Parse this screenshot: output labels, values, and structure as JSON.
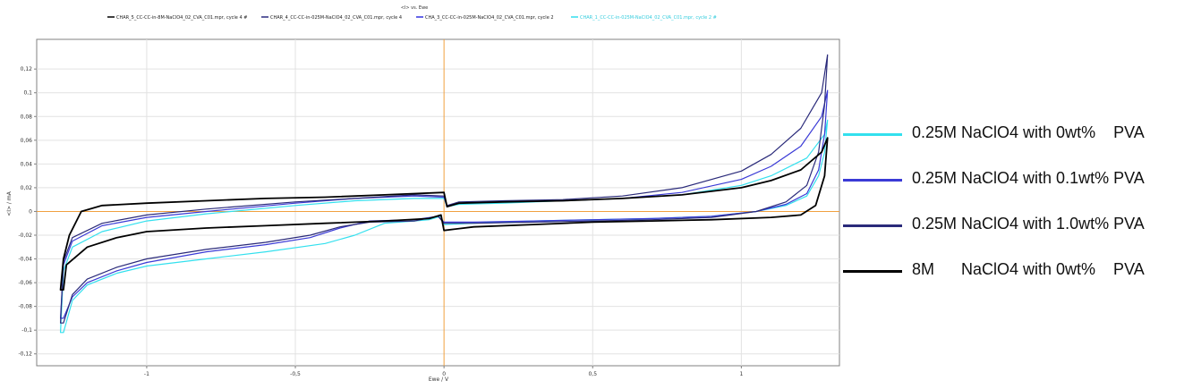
{
  "chart_data": {
    "type": "line",
    "title": "<I> vs. Ewe",
    "xlabel": "Ewe / V",
    "ylabel": "<I> / mA",
    "xlim": [
      -1.37,
      1.33
    ],
    "ylim": [
      -0.13,
      0.145
    ],
    "x_ticks": [
      "-1",
      "-0,5",
      "0",
      "0,5",
      "1"
    ],
    "x_tick_values": [
      -1,
      -0.5,
      0,
      0.5,
      1
    ],
    "y_ticks": [
      "0,12",
      "0,1",
      "0,08",
      "0,06",
      "0,04",
      "0,02",
      "0",
      "-0,02",
      "-0,04",
      "-0,06",
      "-0,08",
      "-0,1",
      "-0,12"
    ],
    "y_tick_values": [
      0.12,
      0.1,
      0.08,
      0.06,
      0.04,
      0.02,
      0,
      -0.02,
      -0.04,
      -0.06,
      -0.08,
      -0.1,
      -0.12
    ],
    "grid": true,
    "zero_lines_color": "#f0a040",
    "top_legend": [
      {
        "label": "CHAR_5_CC-CC-in-8M-NaClO4_02_CVA_C01.mpr, cycle 4 #",
        "color": "#000000"
      },
      {
        "label": "CHAR_4_CC-CC-in-025M-NaClO4_02_CVA_C01.mpr, cycle 4",
        "color": "#2b2b80"
      },
      {
        "label": "CHA_3_CC-CC-in-025M-NaClO4_02_CVA_C01.mpr, cycle 2",
        "color": "#3333e0"
      },
      {
        "label": "CHAR_1_CC-CC-in-025M-NaClO4_02_CVA_C01.mpr, cycle 2 #",
        "color": "#33ddee"
      }
    ],
    "series": [
      {
        "name": "0.25M NaClO4 with 0wt%    PVA",
        "color": "#33e0ee",
        "points": [
          [
            -1.28,
            -0.102
          ],
          [
            -1.25,
            -0.075
          ],
          [
            -1.2,
            -0.062
          ],
          [
            -1.1,
            -0.052
          ],
          [
            -1.0,
            -0.046
          ],
          [
            -0.8,
            -0.04
          ],
          [
            -0.6,
            -0.034
          ],
          [
            -0.4,
            -0.027
          ],
          [
            -0.3,
            -0.02
          ],
          [
            -0.2,
            -0.01
          ],
          [
            -0.1,
            -0.008
          ],
          [
            -0.05,
            -0.007
          ],
          [
            -0.01,
            -0.004
          ],
          [
            0.0,
            -0.011
          ],
          [
            0.1,
            -0.01
          ],
          [
            0.3,
            -0.008
          ],
          [
            0.5,
            -0.007
          ],
          [
            0.7,
            -0.006
          ],
          [
            0.9,
            -0.004
          ],
          [
            1.05,
            0.0
          ],
          [
            1.15,
            0.005
          ],
          [
            1.22,
            0.013
          ],
          [
            1.26,
            0.03
          ],
          [
            1.28,
            0.05
          ],
          [
            1.29,
            0.077
          ],
          [
            1.28,
            0.065
          ],
          [
            1.22,
            0.045
          ],
          [
            1.1,
            0.03
          ],
          [
            1.0,
            0.022
          ],
          [
            0.8,
            0.014
          ],
          [
            0.6,
            0.011
          ],
          [
            0.4,
            0.009
          ],
          [
            0.2,
            0.007
          ],
          [
            0.05,
            0.006
          ],
          [
            0.01,
            0.004
          ],
          [
            0.0,
            0.011
          ],
          [
            -0.1,
            0.011
          ],
          [
            -0.3,
            0.009
          ],
          [
            -0.5,
            0.005
          ],
          [
            -0.8,
            -0.002
          ],
          [
            -1.0,
            -0.008
          ],
          [
            -1.15,
            -0.017
          ],
          [
            -1.25,
            -0.03
          ],
          [
            -1.28,
            -0.05
          ],
          [
            -1.29,
            -0.102
          ]
        ]
      },
      {
        "name": "0.25M NaClO4 with 0.1wt% PVA",
        "color": "#3a3ad6",
        "points": [
          [
            -1.28,
            -0.09
          ],
          [
            -1.25,
            -0.072
          ],
          [
            -1.2,
            -0.06
          ],
          [
            -1.1,
            -0.05
          ],
          [
            -1.0,
            -0.043
          ],
          [
            -0.8,
            -0.034
          ],
          [
            -0.6,
            -0.028
          ],
          [
            -0.45,
            -0.022
          ],
          [
            -0.35,
            -0.014
          ],
          [
            -0.25,
            -0.008
          ],
          [
            -0.1,
            -0.007
          ],
          [
            -0.02,
            -0.004
          ],
          [
            0.0,
            -0.009
          ],
          [
            0.1,
            -0.009
          ],
          [
            0.3,
            -0.008
          ],
          [
            0.5,
            -0.007
          ],
          [
            0.7,
            -0.006
          ],
          [
            0.9,
            -0.004
          ],
          [
            1.05,
            0.0
          ],
          [
            1.15,
            0.006
          ],
          [
            1.22,
            0.015
          ],
          [
            1.26,
            0.035
          ],
          [
            1.28,
            0.065
          ],
          [
            1.29,
            0.102
          ],
          [
            1.27,
            0.08
          ],
          [
            1.2,
            0.055
          ],
          [
            1.1,
            0.038
          ],
          [
            1.0,
            0.027
          ],
          [
            0.8,
            0.016
          ],
          [
            0.6,
            0.011
          ],
          [
            0.4,
            0.009
          ],
          [
            0.2,
            0.008
          ],
          [
            0.05,
            0.007
          ],
          [
            0.01,
            0.004
          ],
          [
            0.0,
            0.012
          ],
          [
            -0.1,
            0.013
          ],
          [
            -0.3,
            0.011
          ],
          [
            -0.5,
            0.007
          ],
          [
            -0.8,
            0.0
          ],
          [
            -1.0,
            -0.005
          ],
          [
            -1.15,
            -0.012
          ],
          [
            -1.25,
            -0.025
          ],
          [
            -1.28,
            -0.045
          ],
          [
            -1.29,
            -0.09
          ]
        ]
      },
      {
        "name": "0.25M NaClO4 with 1.0wt% PVA",
        "color": "#2a2a7a",
        "points": [
          [
            -1.28,
            -0.094
          ],
          [
            -1.25,
            -0.07
          ],
          [
            -1.2,
            -0.057
          ],
          [
            -1.1,
            -0.047
          ],
          [
            -1.0,
            -0.04
          ],
          [
            -0.8,
            -0.032
          ],
          [
            -0.6,
            -0.026
          ],
          [
            -0.45,
            -0.02
          ],
          [
            -0.35,
            -0.013
          ],
          [
            -0.25,
            -0.009
          ],
          [
            -0.1,
            -0.008
          ],
          [
            -0.02,
            -0.004
          ],
          [
            0.0,
            -0.01
          ],
          [
            0.1,
            -0.01
          ],
          [
            0.3,
            -0.009
          ],
          [
            0.5,
            -0.008
          ],
          [
            0.7,
            -0.007
          ],
          [
            0.9,
            -0.005
          ],
          [
            1.05,
            0.0
          ],
          [
            1.15,
            0.008
          ],
          [
            1.22,
            0.022
          ],
          [
            1.26,
            0.05
          ],
          [
            1.28,
            0.09
          ],
          [
            1.29,
            0.132
          ],
          [
            1.27,
            0.1
          ],
          [
            1.2,
            0.07
          ],
          [
            1.1,
            0.048
          ],
          [
            1.0,
            0.034
          ],
          [
            0.8,
            0.02
          ],
          [
            0.6,
            0.013
          ],
          [
            0.4,
            0.01
          ],
          [
            0.2,
            0.009
          ],
          [
            0.05,
            0.008
          ],
          [
            0.01,
            0.005
          ],
          [
            0.0,
            0.013
          ],
          [
            -0.1,
            0.014
          ],
          [
            -0.3,
            0.011
          ],
          [
            -0.5,
            0.008
          ],
          [
            -0.8,
            0.002
          ],
          [
            -1.0,
            -0.003
          ],
          [
            -1.15,
            -0.01
          ],
          [
            -1.25,
            -0.022
          ],
          [
            -1.28,
            -0.042
          ],
          [
            -1.29,
            -0.094
          ]
        ]
      },
      {
        "name": "8M      NaClO4 with 0wt%    PVA",
        "color": "#000000",
        "points": [
          [
            -1.28,
            -0.066
          ],
          [
            -1.27,
            -0.045
          ],
          [
            -1.2,
            -0.03
          ],
          [
            -1.1,
            -0.022
          ],
          [
            -1.0,
            -0.017
          ],
          [
            -0.8,
            -0.014
          ],
          [
            -0.6,
            -0.012
          ],
          [
            -0.4,
            -0.01
          ],
          [
            -0.2,
            -0.008
          ],
          [
            -0.05,
            -0.006
          ],
          [
            -0.01,
            -0.003
          ],
          [
            0.0,
            -0.016
          ],
          [
            0.1,
            -0.013
          ],
          [
            0.3,
            -0.011
          ],
          [
            0.5,
            -0.009
          ],
          [
            0.7,
            -0.008
          ],
          [
            0.9,
            -0.007
          ],
          [
            1.1,
            -0.005
          ],
          [
            1.2,
            -0.003
          ],
          [
            1.25,
            0.005
          ],
          [
            1.28,
            0.03
          ],
          [
            1.29,
            0.062
          ],
          [
            1.27,
            0.05
          ],
          [
            1.2,
            0.035
          ],
          [
            1.1,
            0.026
          ],
          [
            1.0,
            0.02
          ],
          [
            0.8,
            0.014
          ],
          [
            0.6,
            0.011
          ],
          [
            0.4,
            0.009
          ],
          [
            0.2,
            0.008
          ],
          [
            0.05,
            0.007
          ],
          [
            0.01,
            0.004
          ],
          [
            0.0,
            0.016
          ],
          [
            -0.2,
            0.014
          ],
          [
            -0.4,
            0.012
          ],
          [
            -0.6,
            0.011
          ],
          [
            -0.8,
            0.009
          ],
          [
            -1.0,
            0.007
          ],
          [
            -1.15,
            0.005
          ],
          [
            -1.22,
            0.0
          ],
          [
            -1.26,
            -0.02
          ],
          [
            -1.28,
            -0.04
          ],
          [
            -1.29,
            -0.066
          ]
        ]
      }
    ]
  }
}
